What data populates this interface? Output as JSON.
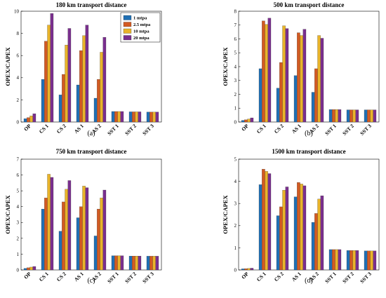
{
  "colors": [
    "#1f6fb4",
    "#d35a22",
    "#eab42a",
    "#7a2f8e"
  ],
  "chart_data": [
    {
      "type": "bar",
      "title": "180 km transport distance",
      "panel_label": "(a)",
      "ylabel": "OPEX/CAPEX",
      "ylim": [
        0,
        10
      ],
      "yticks": [
        "0",
        "2",
        "4",
        "6",
        "8",
        "10"
      ],
      "categories": [
        "OP",
        "CS 1",
        "CS 2",
        "AS 1",
        "AS 2",
        "SST 1",
        "SST 2",
        "SST 3"
      ],
      "legend_position": "top-right",
      "series": [
        {
          "name": "1 mtpa",
          "values": [
            0.3,
            3.85,
            2.45,
            3.35,
            2.15,
            0.95,
            0.92,
            0.9
          ]
        },
        {
          "name": "2.5 mtpa",
          "values": [
            0.4,
            7.3,
            4.3,
            6.45,
            3.85,
            0.95,
            0.92,
            0.9
          ]
        },
        {
          "name": "10 mtpa",
          "values": [
            0.55,
            8.75,
            6.95,
            7.8,
            6.3,
            0.95,
            0.92,
            0.9
          ]
        },
        {
          "name": "20 mtpa",
          "values": [
            0.75,
            9.8,
            8.45,
            8.75,
            7.65,
            0.95,
            0.92,
            0.9
          ]
        }
      ]
    },
    {
      "type": "bar",
      "title": "500 km transport distance",
      "panel_label": "(b)",
      "ylabel": "OPEX/CAPEX",
      "ylim": [
        0,
        8
      ],
      "yticks": [
        "0",
        "1",
        "2",
        "3",
        "4",
        "5",
        "6",
        "7",
        "8"
      ],
      "categories": [
        "OP",
        "CS 1",
        "CS 2",
        "AS 1",
        "AS 2",
        "SST 1",
        "SST 2",
        "SST 3"
      ],
      "series": [
        {
          "name": "1 mtpa",
          "values": [
            0.12,
            3.85,
            2.45,
            3.35,
            2.15,
            0.9,
            0.88,
            0.88
          ]
        },
        {
          "name": "2.5 mtpa",
          "values": [
            0.16,
            7.3,
            4.3,
            6.45,
            3.85,
            0.9,
            0.88,
            0.88
          ]
        },
        {
          "name": "10 mtpa",
          "values": [
            0.22,
            7.05,
            6.95,
            6.25,
            6.25,
            0.9,
            0.88,
            0.88
          ]
        },
        {
          "name": "20 mtpa",
          "values": [
            0.3,
            7.5,
            6.75,
            6.7,
            6.05,
            0.9,
            0.88,
            0.88
          ]
        }
      ]
    },
    {
      "type": "bar",
      "title": "750 km transport distance",
      "panel_label": "(c)",
      "ylabel": "OPEX/CAPEX",
      "ylim": [
        0,
        7
      ],
      "yticks": [
        "0",
        "1",
        "2",
        "3",
        "4",
        "5",
        "6",
        "7"
      ],
      "categories": [
        "OP",
        "CS 1",
        "CS 2",
        "AS 1",
        "AS 2",
        "SST 1",
        "SST 2",
        "SST 3"
      ],
      "series": [
        {
          "name": "1 mtpa",
          "values": [
            0.1,
            3.85,
            2.45,
            3.3,
            2.15,
            0.9,
            0.88,
            0.87
          ]
        },
        {
          "name": "2.5 mtpa",
          "values": [
            0.14,
            4.55,
            4.3,
            4.0,
            3.85,
            0.9,
            0.88,
            0.87
          ]
        },
        {
          "name": "10 mtpa",
          "values": [
            0.18,
            6.05,
            5.1,
            5.3,
            4.55,
            0.9,
            0.88,
            0.87
          ]
        },
        {
          "name": "20 mtpa",
          "values": [
            0.22,
            5.85,
            5.65,
            5.2,
            5.05,
            0.9,
            0.88,
            0.87
          ]
        }
      ]
    },
    {
      "type": "bar",
      "title": "1500 km transport distance",
      "panel_label": "(d)",
      "ylabel": "OPEX/CAPEX",
      "ylim": [
        0,
        5
      ],
      "yticks": [
        "0",
        "1",
        "2",
        "3",
        "4",
        "5"
      ],
      "categories": [
        "OP",
        "CS 1",
        "CS 2",
        "AS 1",
        "AS 2",
        "SST 1",
        "SST 2",
        "SST 3"
      ],
      "series": [
        {
          "name": "1 mtpa",
          "values": [
            0.05,
            3.85,
            2.45,
            3.3,
            2.15,
            0.92,
            0.88,
            0.86
          ]
        },
        {
          "name": "2.5 mtpa",
          "values": [
            0.06,
            4.55,
            2.85,
            3.95,
            2.55,
            0.92,
            0.88,
            0.86
          ]
        },
        {
          "name": "10 mtpa",
          "values": [
            0.07,
            4.45,
            3.6,
            3.88,
            3.2,
            0.92,
            0.88,
            0.86
          ]
        },
        {
          "name": "20 mtpa",
          "values": [
            0.08,
            4.35,
            3.75,
            3.8,
            3.35,
            0.92,
            0.88,
            0.86
          ]
        }
      ]
    }
  ]
}
